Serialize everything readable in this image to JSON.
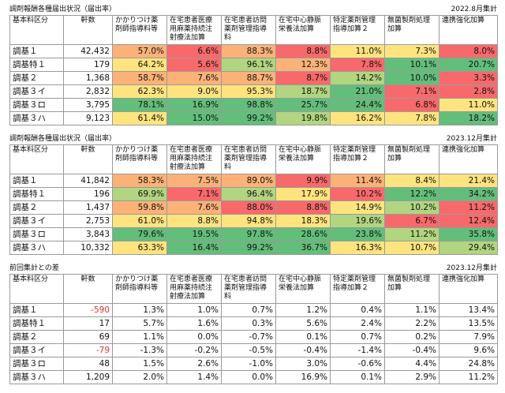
{
  "headers": [
    "基本料区分",
    "軒数",
    "かかりつけ薬剤師指導料等",
    "在宅患者医療用麻薬持続注射療法加算",
    "在宅患者訪問薬剤管理指導料",
    "在宅中心静脈栄養法加算",
    "特定薬剤管理指導加算２",
    "無菌製剤処理加算",
    "連携強化加算"
  ],
  "colors": {
    "green": "#63be7b",
    "lightgreen": "#b1d580",
    "yellow": "#fde47f",
    "orange": "#fbb278",
    "red": "#f8696b",
    "text_negative": "#e03030"
  },
  "tables": [
    {
      "title": "調剤報酬各種届出状況（届出率）",
      "date": "2022.8月集計",
      "rows": [
        {
          "label": "調基１",
          "count": "42,432",
          "values": [
            "57.0%",
            "6.6%",
            "88.3%",
            "8.8%",
            "11.0%",
            "7.3%",
            "8.0%"
          ],
          "colors": [
            "orange",
            "red",
            "orange",
            "red",
            "yellow",
            "yellow",
            "red"
          ]
        },
        {
          "label": "調基特１",
          "count": "179",
          "values": [
            "64.2%",
            "5.6%",
            "96.1%",
            "12.3%",
            "7.8%",
            "10.1%",
            "20.7%"
          ],
          "colors": [
            "yellow",
            "red",
            "lightgreen",
            "orange",
            "red",
            "green",
            "green"
          ]
        },
        {
          "label": "調基２",
          "count": "1,368",
          "values": [
            "58.7%",
            "7.6%",
            "88.7%",
            "8.7%",
            "14.2%",
            "10.0%",
            "3.3%"
          ],
          "colors": [
            "orange",
            "orange",
            "orange",
            "red",
            "lightgreen",
            "green",
            "red"
          ]
        },
        {
          "label": "調基３イ",
          "count": "2,832",
          "values": [
            "62.3%",
            "9.0%",
            "95.3%",
            "18.7%",
            "21.0%",
            "7.1%",
            "2.8%"
          ],
          "colors": [
            "yellow",
            "yellow",
            "yellow",
            "lightgreen",
            "green",
            "red",
            "red"
          ]
        },
        {
          "label": "調基３ロ",
          "count": "3,795",
          "values": [
            "78.1%",
            "16.9%",
            "98.8%",
            "25.7%",
            "24.4%",
            "6.8%",
            "11.0%"
          ],
          "colors": [
            "green",
            "green",
            "green",
            "green",
            "green",
            "red",
            "yellow"
          ]
        },
        {
          "label": "調基３ハ",
          "count": "9,123",
          "values": [
            "61.4%",
            "15.0%",
            "99.2%",
            "19.8%",
            "16.2%",
            "7.8%",
            "18.2%"
          ],
          "colors": [
            "yellow",
            "green",
            "green",
            "lightgreen",
            "yellow",
            "yellow",
            "green"
          ]
        }
      ]
    },
    {
      "title": "調剤報酬各種届出状況（届出率）",
      "date": "2023.12月集計",
      "rows": [
        {
          "label": "調基１",
          "count": "41,842",
          "values": [
            "58.3%",
            "7.5%",
            "89.0%",
            "9.9%",
            "11.4%",
            "8.4%",
            "21.4%"
          ],
          "colors": [
            "orange",
            "orange",
            "orange",
            "red",
            "orange",
            "yellow",
            "yellow"
          ]
        },
        {
          "label": "調基特１",
          "count": "196",
          "values": [
            "69.9%",
            "7.1%",
            "96.4%",
            "17.9%",
            "10.2%",
            "12.2%",
            "34.2%"
          ],
          "colors": [
            "lightgreen",
            "red",
            "lightgreen",
            "yellow",
            "red",
            "green",
            "green"
          ]
        },
        {
          "label": "調基２",
          "count": "1,437",
          "values": [
            "59.8%",
            "7.6%",
            "88.0%",
            "8.8%",
            "14.9%",
            "10.2%",
            "11.2%"
          ],
          "colors": [
            "orange",
            "orange",
            "red",
            "red",
            "yellow",
            "lightgreen",
            "red"
          ]
        },
        {
          "label": "調基３イ",
          "count": "2,753",
          "values": [
            "61.0%",
            "8.8%",
            "94.8%",
            "18.3%",
            "19.6%",
            "6.7%",
            "12.4%"
          ],
          "colors": [
            "yellow",
            "yellow",
            "yellow",
            "yellow",
            "lightgreen",
            "red",
            "red"
          ]
        },
        {
          "label": "調基３ロ",
          "count": "3,843",
          "values": [
            "79.6%",
            "19.5%",
            "97.8%",
            "28.6%",
            "23.8%",
            "11.2%",
            "35.8%"
          ],
          "colors": [
            "green",
            "green",
            "green",
            "green",
            "green",
            "lightgreen",
            "green"
          ]
        },
        {
          "label": "調基３ハ",
          "count": "10,332",
          "values": [
            "63.3%",
            "16.4%",
            "99.2%",
            "36.7%",
            "16.3%",
            "10.7%",
            "29.4%"
          ],
          "colors": [
            "yellow",
            "green",
            "green",
            "green",
            "yellow",
            "yellow",
            "lightgreen"
          ]
        }
      ]
    },
    {
      "title": "前回集計との差",
      "date": "2023.12月集計",
      "rows": [
        {
          "label": "調基１",
          "count": "-590",
          "values": [
            "1.3%",
            "1.0%",
            "0.7%",
            "1.2%",
            "0.4%",
            "1.1%",
            "13.4%"
          ],
          "colors": [
            "",
            "",
            "",
            "",
            "",
            "",
            ""
          ]
        },
        {
          "label": "調基特１",
          "count": "17",
          "values": [
            "5.7%",
            "1.6%",
            "0.3%",
            "5.6%",
            "2.4%",
            "2.2%",
            "13.5%"
          ],
          "colors": [
            "",
            "",
            "",
            "",
            "",
            "",
            ""
          ]
        },
        {
          "label": "調基２",
          "count": "69",
          "values": [
            "1.1%",
            "0.0%",
            "-0.7%",
            "0.1%",
            "0.7%",
            "0.2%",
            "7.9%"
          ],
          "colors": [
            "",
            "",
            "",
            "",
            "",
            "",
            ""
          ]
        },
        {
          "label": "調基３イ",
          "count": "-79",
          "values": [
            "-1.3%",
            "-0.2%",
            "-0.5%",
            "-0.4%",
            "-1.4%",
            "-0.4%",
            "9.6%"
          ],
          "colors": [
            "",
            "",
            "",
            "",
            "",
            "",
            ""
          ]
        },
        {
          "label": "調基３ロ",
          "count": "48",
          "values": [
            "1.5%",
            "2.6%",
            "-1.0%",
            "3.0%",
            "-0.6%",
            "4.4%",
            "24.8%"
          ],
          "colors": [
            "",
            "",
            "",
            "",
            "",
            "",
            ""
          ]
        },
        {
          "label": "調基３ハ",
          "count": "1,209",
          "values": [
            "2.0%",
            "1.4%",
            "0.0%",
            "16.9%",
            "0.1%",
            "2.9%",
            "11.2%"
          ],
          "colors": [
            "",
            "",
            "",
            "",
            "",
            "",
            ""
          ]
        }
      ]
    }
  ]
}
